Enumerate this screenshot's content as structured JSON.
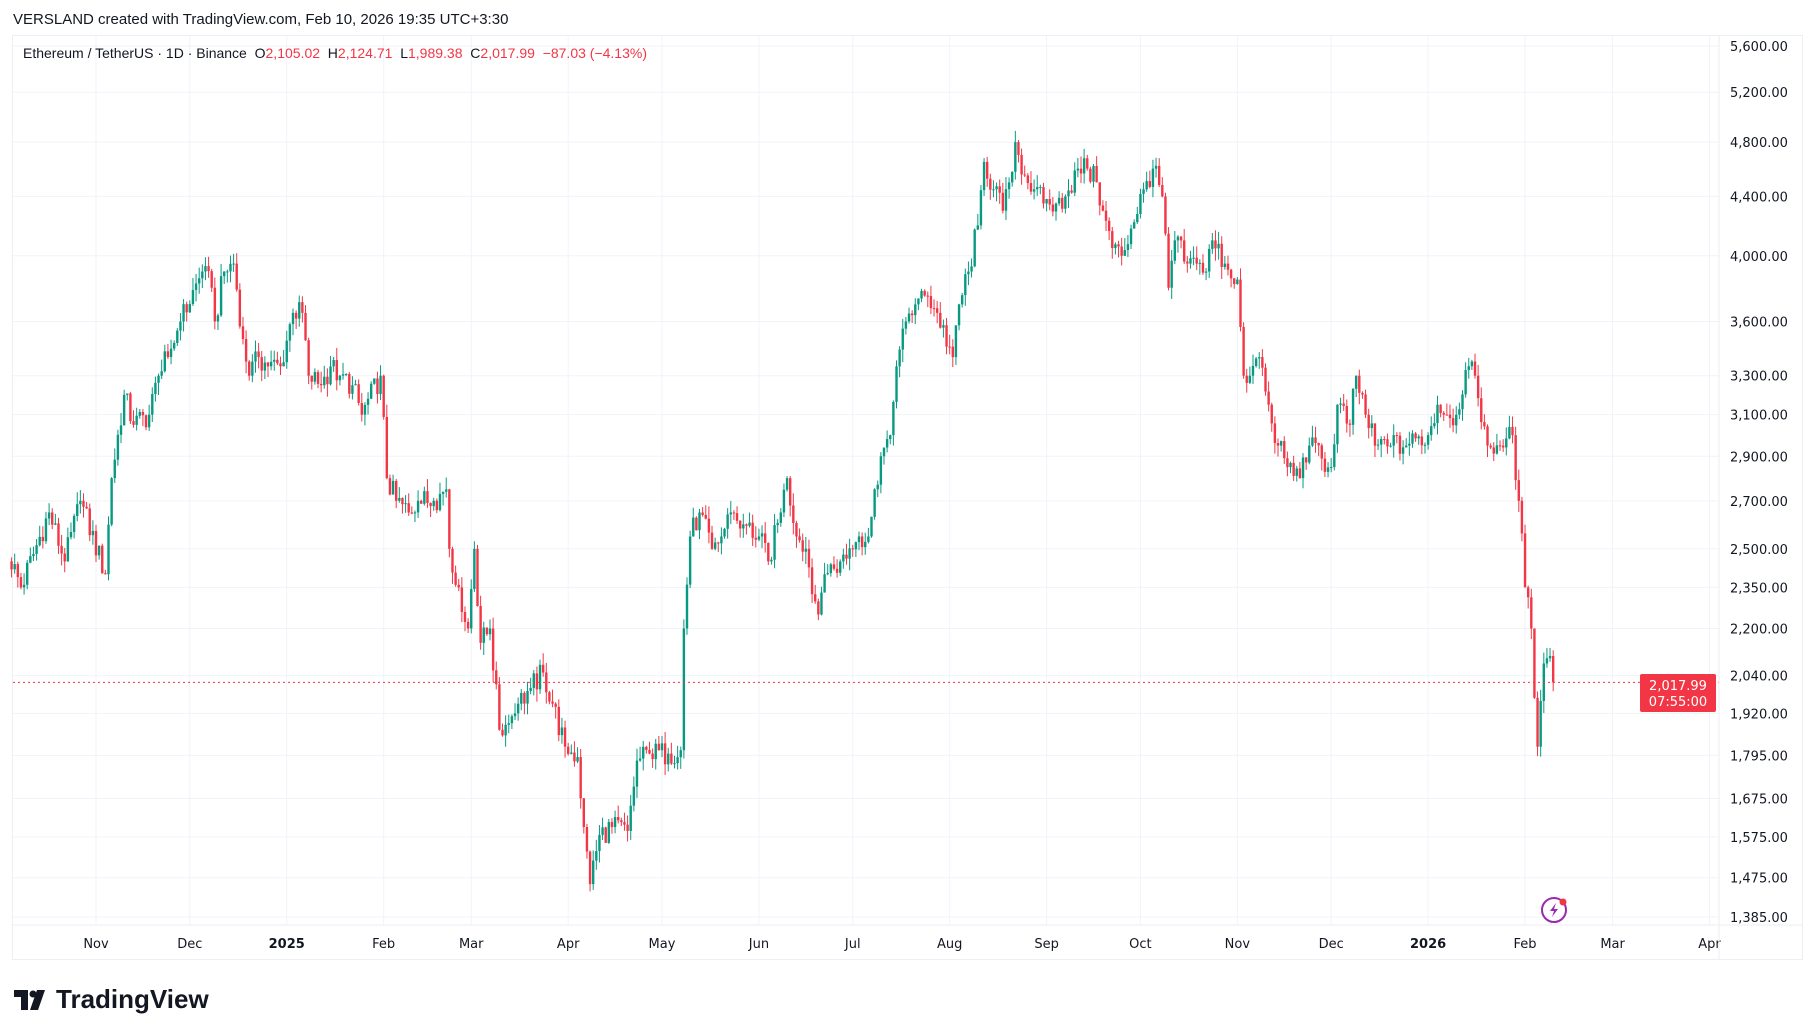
{
  "credit": "VERSLAND created with TradingView.com, Feb 10, 2026 19:35 UTC+3:30",
  "legend": {
    "symbol": "Ethereum / TetherUS · 1D · Binance",
    "o_label": "O",
    "o": "2,105.02",
    "h_label": "H",
    "h": "2,124.71",
    "l_label": "L",
    "l": "1,989.38",
    "c_label": "C",
    "c": "2,017.99",
    "change": "−87.03 (−4.13%)"
  },
  "last_price_label": {
    "price": "2,017.99",
    "countdown": "07:55:00"
  },
  "logo_text": "TradingView",
  "colors": {
    "up": "#089981",
    "down": "#F23645",
    "grid": "#f0f3fa",
    "last_price": "#F23645",
    "lightning": "#9c27b0"
  },
  "chart_data": {
    "type": "candlestick",
    "interval": "1D",
    "y_scale": "log",
    "ylim": [
      1385,
      5600
    ],
    "grid": true,
    "y_ticks": [
      5600,
      5200,
      4800,
      4400,
      4000,
      3600,
      3300,
      3100,
      2900,
      2700,
      2500,
      2350,
      2200,
      2040,
      1920,
      1795,
      1675,
      1575,
      1475,
      1385
    ],
    "y_tick_labels": [
      "5,600.00",
      "5,200.00",
      "4,800.00",
      "4,400.00",
      "4,000.00",
      "3,600.00",
      "3,300.00",
      "3,100.00",
      "2,900.00",
      "2,700.00",
      "2,500.00",
      "2,350.00",
      "2,200.00",
      "2,040.00",
      "1,920.00",
      "1,795.00",
      "1,675.00",
      "1,575.00",
      "1,475.00",
      "1,385.00"
    ],
    "x_ticks": [
      {
        "date": "2024-11-01",
        "label": "Nov"
      },
      {
        "date": "2024-12-01",
        "label": "Dec"
      },
      {
        "date": "2025-01-01",
        "label": "2025",
        "bold": true
      },
      {
        "date": "2025-02-01",
        "label": "Feb"
      },
      {
        "date": "2025-03-01",
        "label": "Mar"
      },
      {
        "date": "2025-04-01",
        "label": "Apr"
      },
      {
        "date": "2025-05-01",
        "label": "May"
      },
      {
        "date": "2025-06-01",
        "label": "Jun"
      },
      {
        "date": "2025-07-01",
        "label": "Jul"
      },
      {
        "date": "2025-08-01",
        "label": "Aug"
      },
      {
        "date": "2025-09-01",
        "label": "Sep"
      },
      {
        "date": "2025-10-01",
        "label": "Oct"
      },
      {
        "date": "2025-11-01",
        "label": "Nov"
      },
      {
        "date": "2025-12-01",
        "label": "Dec"
      },
      {
        "date": "2026-01-01",
        "label": "2026",
        "bold": true
      },
      {
        "date": "2026-02-01",
        "label": "Feb"
      },
      {
        "date": "2026-03-01",
        "label": "Mar"
      },
      {
        "date": "2026-04-01",
        "label": "Apr"
      }
    ],
    "x_range": [
      "2024-10-05",
      "2026-04-01"
    ],
    "last_candle": {
      "date": "2026-02-10",
      "open": 2105.02,
      "high": 2124.71,
      "low": 1989.38,
      "close": 2017.99
    },
    "approx_closes": [
      [
        "2024-10-05",
        2450
      ],
      [
        "2024-10-08",
        2350
      ],
      [
        "2024-10-17",
        2650
      ],
      [
        "2024-10-22",
        2450
      ],
      [
        "2024-10-27",
        2700
      ],
      [
        "2024-11-04",
        2400
      ],
      [
        "2024-11-06",
        2800
      ],
      [
        "2024-11-10",
        3200
      ],
      [
        "2024-11-13",
        3050
      ],
      [
        "2024-11-18",
        3100
      ],
      [
        "2024-11-21",
        3300
      ],
      [
        "2024-11-24",
        3400
      ],
      [
        "2024-11-28",
        3600
      ],
      [
        "2024-12-05",
        3900
      ],
      [
        "2024-12-08",
        3800
      ],
      [
        "2024-12-09",
        3600
      ],
      [
        "2024-12-12",
        3900
      ],
      [
        "2024-12-15",
        3950
      ],
      [
        "2024-12-18",
        3500
      ],
      [
        "2024-12-20",
        3300
      ],
      [
        "2024-12-23",
        3400
      ],
      [
        "2024-12-26",
        3350
      ],
      [
        "2024-12-30",
        3350
      ],
      [
        "2025-01-03",
        3650
      ],
      [
        "2025-01-06",
        3650
      ],
      [
        "2025-01-08",
        3300
      ],
      [
        "2025-01-12",
        3250
      ],
      [
        "2025-01-15",
        3350
      ],
      [
        "2025-01-18",
        3300
      ],
      [
        "2025-01-22",
        3250
      ],
      [
        "2025-01-25",
        3100
      ],
      [
        "2025-01-31",
        3300
      ],
      [
        "2025-02-02",
        2800
      ],
      [
        "2025-02-05",
        2700
      ],
      [
        "2025-02-09",
        2650
      ],
      [
        "2025-02-12",
        2700
      ],
      [
        "2025-02-17",
        2700
      ],
      [
        "2025-02-21",
        2750
      ],
      [
        "2025-02-22",
        2500
      ],
      [
        "2025-02-25",
        2350
      ],
      [
        "2025-02-28",
        2200
      ],
      [
        "2025-03-02",
        2500
      ],
      [
        "2025-03-04",
        2150
      ],
      [
        "2025-03-07",
        2200
      ],
      [
        "2025-03-10",
        1870
      ],
      [
        "2025-03-13",
        1890
      ],
      [
        "2025-03-16",
        1950
      ],
      [
        "2025-03-20",
        2000
      ],
      [
        "2025-03-24",
        2050
      ],
      [
        "2025-03-27",
        1950
      ],
      [
        "2025-03-31",
        1820
      ],
      [
        "2025-04-04",
        1790
      ],
      [
        "2025-04-06",
        1600
      ],
      [
        "2025-04-08",
        1460
      ],
      [
        "2025-04-11",
        1580
      ],
      [
        "2025-04-15",
        1600
      ],
      [
        "2025-04-20",
        1590
      ],
      [
        "2025-04-23",
        1780
      ],
      [
        "2025-04-27",
        1800
      ],
      [
        "2025-05-03",
        1800
      ],
      [
        "2025-05-07",
        1810
      ],
      [
        "2025-05-08",
        2200
      ],
      [
        "2025-05-10",
        2550
      ],
      [
        "2025-05-13",
        2650
      ],
      [
        "2025-05-17",
        2500
      ],
      [
        "2025-05-20",
        2550
      ],
      [
        "2025-05-23",
        2650
      ],
      [
        "2025-05-27",
        2600
      ],
      [
        "2025-06-01",
        2550
      ],
      [
        "2025-06-04",
        2450
      ],
      [
        "2025-06-08",
        2650
      ],
      [
        "2025-06-10",
        2800
      ],
      [
        "2025-06-13",
        2550
      ],
      [
        "2025-06-16",
        2500
      ],
      [
        "2025-06-20",
        2250
      ],
      [
        "2025-06-22",
        2400
      ],
      [
        "2025-06-27",
        2450
      ],
      [
        "2025-07-03",
        2550
      ],
      [
        "2025-07-06",
        2550
      ],
      [
        "2025-07-10",
        2900
      ],
      [
        "2025-07-13",
        3000
      ],
      [
        "2025-07-15",
        3350
      ],
      [
        "2025-07-18",
        3600
      ],
      [
        "2025-07-21",
        3700
      ],
      [
        "2025-07-25",
        3750
      ],
      [
        "2025-07-28",
        3650
      ],
      [
        "2025-08-02",
        3400
      ],
      [
        "2025-08-04",
        3700
      ],
      [
        "2025-08-07",
        3900
      ],
      [
        "2025-08-10",
        4200
      ],
      [
        "2025-08-12",
        4650
      ],
      [
        "2025-08-15",
        4450
      ],
      [
        "2025-08-18",
        4300
      ],
      [
        "2025-08-20",
        4500
      ],
      [
        "2025-08-22",
        4800
      ],
      [
        "2025-08-25",
        4550
      ],
      [
        "2025-08-28",
        4450
      ],
      [
        "2025-08-31",
        4350
      ],
      [
        "2025-09-04",
        4350
      ],
      [
        "2025-09-07",
        4400
      ],
      [
        "2025-09-11",
        4600
      ],
      [
        "2025-09-14",
        4600
      ],
      [
        "2025-09-17",
        4500
      ],
      [
        "2025-09-19",
        4300
      ],
      [
        "2025-09-22",
        4050
      ],
      [
        "2025-09-25",
        4000
      ],
      [
        "2025-10-02",
        4450
      ],
      [
        "2025-10-05",
        4600
      ],
      [
        "2025-10-08",
        4400
      ],
      [
        "2025-10-10",
        3800
      ],
      [
        "2025-10-12",
        4100
      ],
      [
        "2025-10-16",
        3950
      ],
      [
        "2025-10-19",
        3950
      ],
      [
        "2025-10-22",
        3900
      ],
      [
        "2025-10-24",
        4100
      ],
      [
        "2025-10-28",
        3950
      ],
      [
        "2025-11-01",
        3850
      ],
      [
        "2025-11-03",
        3300
      ],
      [
        "2025-11-05",
        3300
      ],
      [
        "2025-11-08",
        3400
      ],
      [
        "2025-11-11",
        3150
      ],
      [
        "2025-11-14",
        2950
      ],
      [
        "2025-11-17",
        2850
      ],
      [
        "2025-11-21",
        2800
      ],
      [
        "2025-11-24",
        2950
      ],
      [
        "2025-12-01",
        2850
      ],
      [
        "2025-12-03",
        3150
      ],
      [
        "2025-12-07",
        3050
      ],
      [
        "2025-12-09",
        3300
      ],
      [
        "2025-12-12",
        3100
      ],
      [
        "2025-12-15",
        2950
      ],
      [
        "2025-12-20",
        2950
      ],
      [
        "2025-12-25",
        2950
      ],
      [
        "2026-01-01",
        3000
      ],
      [
        "2026-01-04",
        3150
      ],
      [
        "2026-01-07",
        3100
      ],
      [
        "2026-01-10",
        3100
      ],
      [
        "2026-01-13",
        3330
      ],
      [
        "2026-01-16",
        3300
      ],
      [
        "2026-01-20",
        2950
      ],
      [
        "2026-01-24",
        2950
      ],
      [
        "2026-01-28",
        3000
      ],
      [
        "2026-01-30",
        2700
      ],
      [
        "2026-02-01",
        2350
      ],
      [
        "2026-02-03",
        2200
      ],
      [
        "2026-02-05",
        1820
      ],
      [
        "2026-02-07",
        2080
      ],
      [
        "2026-02-09",
        2105.02
      ]
    ]
  }
}
